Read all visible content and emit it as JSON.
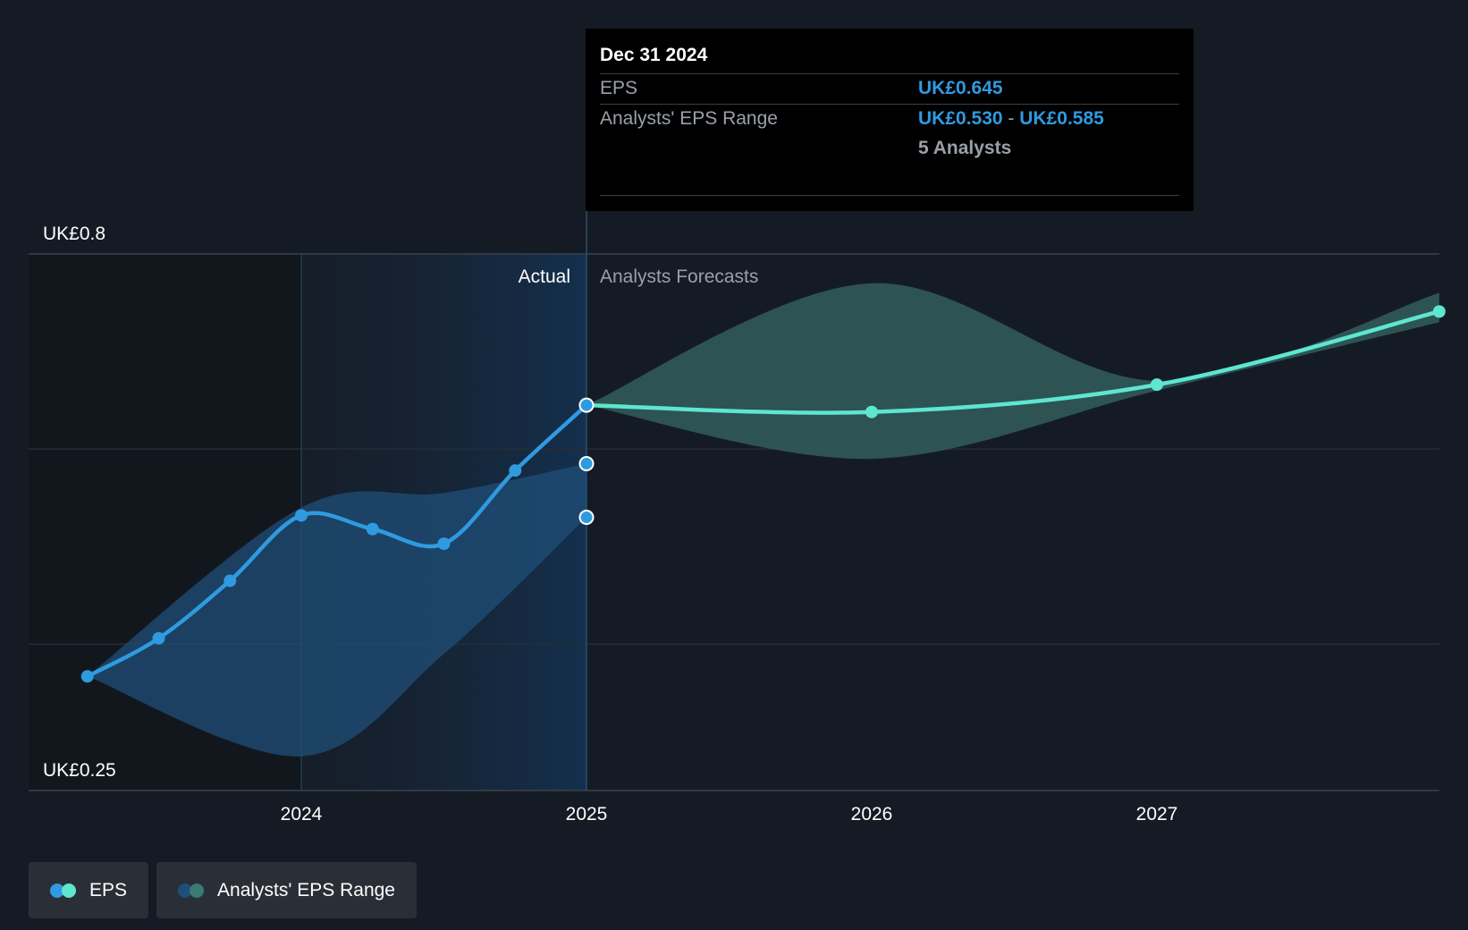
{
  "colors": {
    "background": "#151b24",
    "eps_actual": "#2f9ae0",
    "eps_forecast": "#5ee6d0",
    "range_actual": "#1f4f78",
    "range_forecast": "#2e5755",
    "tooltip_bg": "#000000"
  },
  "y_axis": {
    "top_label": "UK£0.8",
    "bottom_label": "UK£0.25"
  },
  "sections": {
    "actual": "Actual",
    "forecast": "Analysts Forecasts"
  },
  "tooltip": {
    "date": "Dec 31 2024",
    "eps_label": "EPS",
    "eps_value": "UK£0.645",
    "range_label": "Analysts' EPS Range",
    "range_low": "UK£0.530",
    "range_sep": "-",
    "range_high": "UK£0.585",
    "analysts": "5 Analysts"
  },
  "legend": {
    "eps": {
      "label": "EPS",
      "icon": "dual-dot-icon"
    },
    "range": {
      "label": "Analysts' EPS Range",
      "icon": "dual-dot-icon"
    }
  },
  "chart_data": {
    "type": "line",
    "title": "",
    "xlabel": "",
    "ylabel": "",
    "ylim": [
      0.25,
      0.8
    ],
    "x_ticks": [
      "2024",
      "2025",
      "2026",
      "2027"
    ],
    "gridlines_y": [
      0.4,
      0.6,
      0.8
    ],
    "grid": true,
    "legend_placement": "bottom-left",
    "series": [
      {
        "name": "EPS",
        "kind": "actual",
        "points": [
          {
            "x": 2023.25,
            "y": 0.367
          },
          {
            "x": 2023.5,
            "y": 0.406
          },
          {
            "x": 2023.75,
            "y": 0.465
          },
          {
            "x": 2024.0,
            "y": 0.532
          },
          {
            "x": 2024.25,
            "y": 0.518
          },
          {
            "x": 2024.5,
            "y": 0.503
          },
          {
            "x": 2024.75,
            "y": 0.578
          },
          {
            "x": 2025.0,
            "y": 0.645
          }
        ]
      },
      {
        "name": "EPS",
        "kind": "forecast",
        "points": [
          {
            "x": 2025.0,
            "y": 0.645
          },
          {
            "x": 2026.0,
            "y": 0.638
          },
          {
            "x": 2027.0,
            "y": 0.666
          },
          {
            "x": 2027.99,
            "y": 0.741
          }
        ]
      }
    ],
    "range_actual": {
      "name": "Analysts' EPS Range",
      "x": [
        2023.25,
        2024.0,
        2024.5,
        2025.0
      ],
      "high": [
        0.367,
        0.54,
        0.555,
        0.585
      ],
      "low": [
        0.367,
        0.285,
        0.39,
        0.53
      ]
    },
    "range_forecast": {
      "name": "Analysts' EPS Range",
      "x": [
        2025.0,
        2026.0,
        2027.0,
        2027.99
      ],
      "high": [
        0.645,
        0.77,
        0.67,
        0.76
      ],
      "low": [
        0.645,
        0.59,
        0.66,
        0.73
      ]
    },
    "highlight_points": [
      {
        "x": 2025.0,
        "y": 0.645
      },
      {
        "x": 2025.0,
        "y": 0.585
      },
      {
        "x": 2025.0,
        "y": 0.53
      }
    ]
  }
}
